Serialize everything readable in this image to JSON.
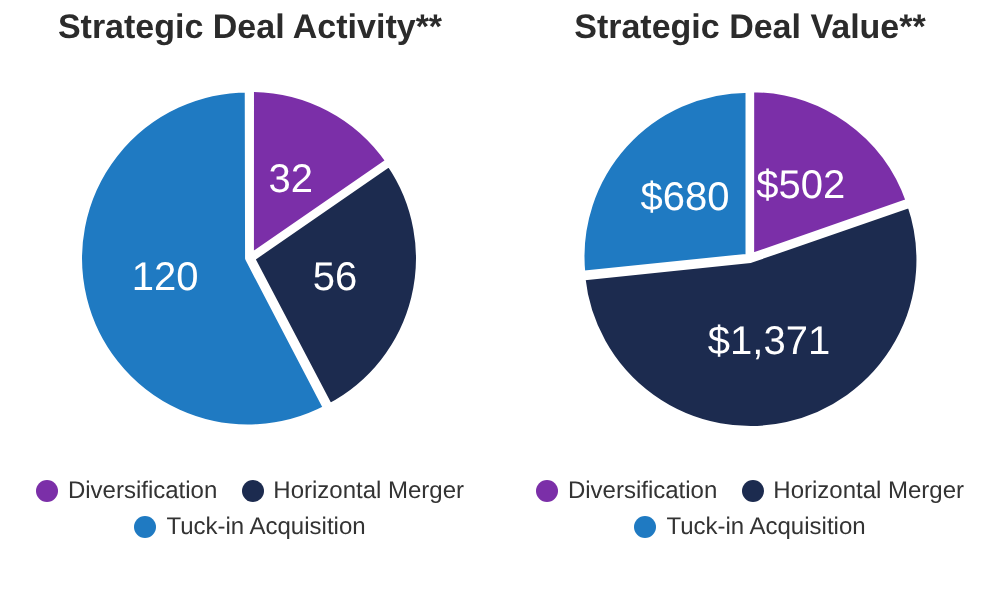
{
  "chart_data": [
    {
      "type": "pie",
      "title": "Strategic Deal Activity**",
      "categories": [
        "Diversification",
        "Horizontal Merger",
        "Tuck-in Acquisition"
      ],
      "values": [
        32,
        56,
        120
      ],
      "colors": [
        "#7b2fa8",
        "#1c2b4f",
        "#1f7ac2"
      ],
      "data_labels": true,
      "legend": "bottom"
    },
    {
      "type": "pie",
      "title": "Strategic Deal Value**",
      "categories": [
        "Diversification",
        "Horizontal Merger",
        "Tuck-in Acquisition"
      ],
      "values": [
        502,
        1371,
        680
      ],
      "value_labels": [
        "$502",
        "$1,371",
        "$680"
      ],
      "colors": [
        "#7b2fa8",
        "#1c2b4f",
        "#1f7ac2"
      ],
      "legend": "bottom"
    }
  ]
}
